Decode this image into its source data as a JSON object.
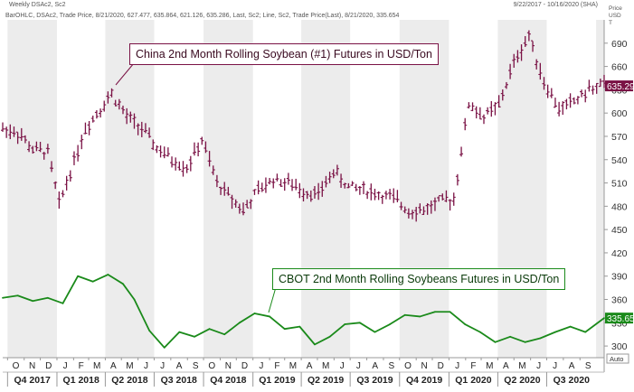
{
  "header": {
    "title": "Weekly DSAc2, Sc2",
    "date_range": "9/22/2017 - 10/16/2020 (SHA)",
    "legend_line1": "BarOHLC, DSAc2, Trade Price, 8/21/2020, 627.477, 635.864, 621.126, 635.286, Last, Sc2",
    "legend_line2": "Line, Sc2, Trade Price(Last), 8/21/2020, 335.654"
  },
  "axis_header": {
    "line1": "Price",
    "line2": "USD",
    "line3": "T"
  },
  "annotations": {
    "china": "China 2nd Month Rolling Soybean (#1) Futures in USD/Ton",
    "cbot": "CBOT 2nd Month Rolling Soybeans Futures in USD/Ton"
  },
  "tags": {
    "china_last": "635.29",
    "cbot_last": "335.65",
    "auto": "Auto"
  },
  "colors": {
    "china": "#7a1245",
    "cbot": "#1a8a1a",
    "shade": "#ececec"
  },
  "chart_data": {
    "type": "line",
    "x_range": [
      "2017-09-22",
      "2020-10-16"
    ],
    "y_range": [
      285,
      720
    ],
    "y_ticks": [
      300,
      330,
      360,
      390,
      420,
      450,
      480,
      510,
      540,
      570,
      600,
      630,
      660,
      690
    ],
    "month_labels": [
      "O",
      "N",
      "D",
      "J",
      "F",
      "M",
      "A",
      "M",
      "J",
      "J",
      "A",
      "S",
      "O",
      "N",
      "D",
      "J",
      "F",
      "M",
      "A",
      "M",
      "J",
      "J",
      "A",
      "S",
      "O",
      "N",
      "D",
      "J",
      "F",
      "M",
      "A",
      "M",
      "J",
      "J",
      "A",
      "S"
    ],
    "quarter_labels": [
      "Q4 2017",
      "Q1 2018",
      "Q2 2018",
      "Q3 2018",
      "Q4 2018",
      "Q1 2019",
      "Q2 2019",
      "Q3 2019",
      "Q4 2019",
      "Q1 2020",
      "Q2 2020",
      "Q3 2020"
    ],
    "series": [
      {
        "name": "China 2nd Month Rolling Soybean (#1) Futures in USD/Ton",
        "style": "ohlc",
        "x": [
          "2017-09-22",
          "2017-10-20",
          "2017-11-17",
          "2017-12-15",
          "2018-01-05",
          "2018-01-26",
          "2018-02-23",
          "2018-03-16",
          "2018-04-13",
          "2018-05-11",
          "2018-06-08",
          "2018-07-06",
          "2018-08-03",
          "2018-08-31",
          "2018-09-28",
          "2018-10-26",
          "2018-11-23",
          "2018-12-14",
          "2019-01-11",
          "2019-02-08",
          "2019-03-08",
          "2019-04-05",
          "2019-05-03",
          "2019-05-31",
          "2019-06-28",
          "2019-07-26",
          "2019-08-23",
          "2019-09-20",
          "2019-10-18",
          "2019-11-15",
          "2019-12-13",
          "2020-01-10",
          "2020-02-07",
          "2020-03-06",
          "2020-04-03",
          "2020-05-01",
          "2020-05-29",
          "2020-06-26",
          "2020-07-24",
          "2020-08-21",
          "2020-09-18",
          "2020-10-16"
        ],
        "values": [
          580,
          575,
          553,
          550,
          483,
          525,
          580,
          600,
          625,
          595,
          580,
          555,
          540,
          530,
          565,
          510,
          490,
          475,
          500,
          515,
          510,
          500,
          495,
          525,
          505,
          502,
          495,
          490,
          475,
          475,
          485,
          490,
          612,
          595,
          610,
          665,
          700,
          640,
          605,
          615,
          630,
          635
        ]
      },
      {
        "name": "CBOT 2nd Month Rolling Soybeans Futures in USD/Ton",
        "style": "line",
        "x": [
          "2017-09-22",
          "2017-10-20",
          "2017-11-17",
          "2017-12-15",
          "2018-01-12",
          "2018-02-09",
          "2018-03-09",
          "2018-04-06",
          "2018-05-04",
          "2018-05-25",
          "2018-06-22",
          "2018-07-20",
          "2018-08-17",
          "2018-09-14",
          "2018-10-12",
          "2018-11-09",
          "2018-12-07",
          "2019-01-04",
          "2019-02-01",
          "2019-03-01",
          "2019-03-29",
          "2019-04-26",
          "2019-05-24",
          "2019-06-21",
          "2019-07-19",
          "2019-08-16",
          "2019-09-13",
          "2019-10-11",
          "2019-11-08",
          "2019-12-06",
          "2020-01-03",
          "2020-01-31",
          "2020-02-28",
          "2020-03-27",
          "2020-04-24",
          "2020-05-22",
          "2020-06-19",
          "2020-07-17",
          "2020-08-14",
          "2020-09-11",
          "2020-10-16"
        ],
        "values": [
          362,
          365,
          358,
          362,
          355,
          390,
          383,
          392,
          380,
          360,
          320,
          298,
          318,
          312,
          322,
          315,
          330,
          342,
          338,
          322,
          325,
          302,
          312,
          328,
          330,
          318,
          328,
          340,
          338,
          344,
          344,
          328,
          318,
          305,
          312,
          305,
          310,
          318,
          325,
          318,
          336
        ]
      }
    ]
  }
}
